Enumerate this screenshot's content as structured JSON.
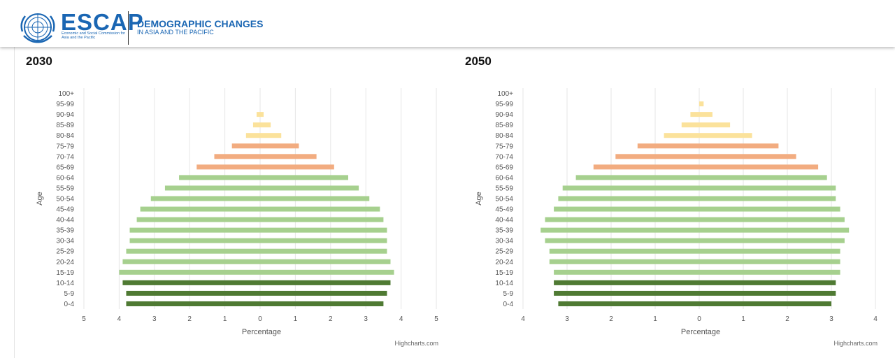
{
  "header": {
    "logo_text": "ESCAP",
    "logo_subtext": "Economic and Social Commission for Asia and the Pacific",
    "title": "DEMOGRAPHIC CHANGES",
    "subtitle": "IN ASIA AND THE PACIFIC",
    "logo_icon": "un-emblem-icon"
  },
  "colors": {
    "young": "#4f7a33",
    "working": "#a6d08e",
    "older": "#f2ac80",
    "oldest": "#fbe29b",
    "grid": "#e6e6e6",
    "axis_text": "#555555"
  },
  "chart_data": [
    {
      "type": "bar",
      "title": "2030",
      "xlabel": "Percentage",
      "ylabel": "Age",
      "xlim": [
        -5,
        5
      ],
      "xticks": [
        "5",
        "4",
        "3",
        "2",
        "1",
        "0",
        "1",
        "2",
        "3",
        "4",
        "5"
      ],
      "categories": [
        "100+",
        "95-99",
        "90-94",
        "85-89",
        "80-84",
        "75-79",
        "70-74",
        "65-69",
        "60-64",
        "55-59",
        "50-54",
        "45-49",
        "40-44",
        "35-39",
        "30-34",
        "25-29",
        "20-24",
        "15-19",
        "10-14",
        "5-9",
        "0-4"
      ],
      "series": [
        {
          "side": "left",
          "values": [
            0,
            0,
            0.1,
            0.2,
            0.4,
            0.8,
            1.3,
            1.8,
            2.3,
            2.7,
            3.1,
            3.4,
            3.5,
            3.7,
            3.7,
            3.8,
            3.9,
            4.0,
            3.9,
            3.8,
            3.8
          ]
        },
        {
          "side": "right",
          "values": [
            0,
            0,
            0.1,
            0.3,
            0.6,
            1.1,
            1.6,
            2.1,
            2.5,
            2.8,
            3.1,
            3.4,
            3.5,
            3.6,
            3.6,
            3.6,
            3.7,
            3.8,
            3.7,
            3.6,
            3.5
          ]
        }
      ],
      "credit": "Highcharts.com"
    },
    {
      "type": "bar",
      "title": "2050",
      "xlabel": "Percentage",
      "ylabel": "Age",
      "xlim": [
        -4,
        4
      ],
      "xticks": [
        "4",
        "3",
        "2",
        "1",
        "0",
        "1",
        "2",
        "3",
        "4"
      ],
      "categories": [
        "100+",
        "95-99",
        "90-94",
        "85-89",
        "80-84",
        "75-79",
        "70-74",
        "65-69",
        "60-64",
        "55-59",
        "50-54",
        "45-49",
        "40-44",
        "35-39",
        "30-34",
        "25-29",
        "20-24",
        "15-19",
        "10-14",
        "5-9",
        "0-4"
      ],
      "series": [
        {
          "side": "left",
          "values": [
            0,
            0,
            0.2,
            0.4,
            0.8,
            1.4,
            1.9,
            2.4,
            2.8,
            3.1,
            3.2,
            3.3,
            3.5,
            3.6,
            3.5,
            3.4,
            3.4,
            3.3,
            3.3,
            3.3,
            3.2
          ]
        },
        {
          "side": "right",
          "values": [
            0,
            0.1,
            0.3,
            0.7,
            1.2,
            1.8,
            2.2,
            2.7,
            2.9,
            3.1,
            3.1,
            3.2,
            3.3,
            3.4,
            3.3,
            3.2,
            3.2,
            3.2,
            3.1,
            3.1,
            3.0
          ]
        }
      ],
      "credit": "Highcharts.com"
    }
  ]
}
